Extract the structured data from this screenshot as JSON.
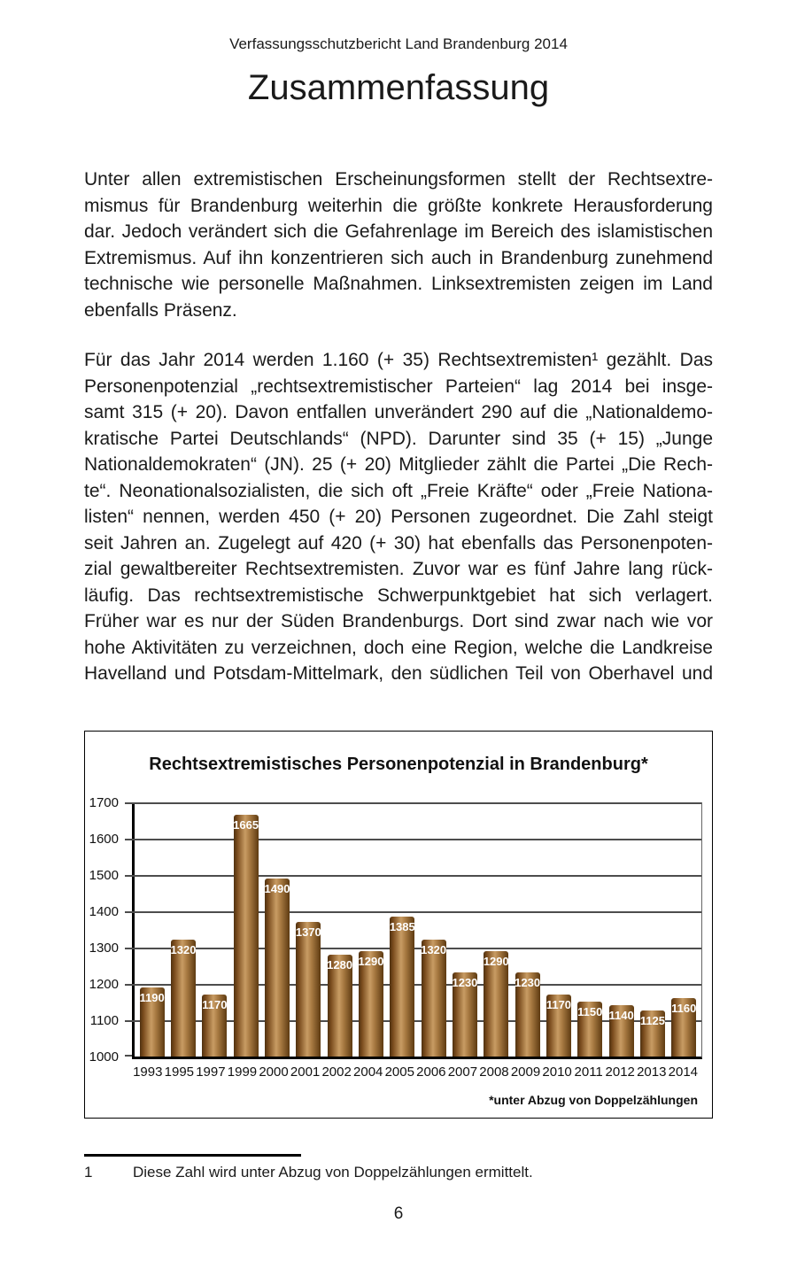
{
  "page": {
    "header": "Verfassungsschutzbericht Land Brandenburg 2014",
    "title": "Zusammenfassung",
    "page_number": "6",
    "footnote_marker": "1",
    "footnote_text": "Diese Zahl wird unter Abzug von Doppelzählungen ermittelt."
  },
  "body": {
    "paragraph1_lines": [
      "Unter allen extremistischen Erscheinungsformen stellt der Rechtsextre-",
      "mismus für Brandenburg weiterhin die größte konkrete Herausforderung",
      "dar. Jedoch verändert sich die Gefahrenlage im Bereich des islamistischen",
      "Extremismus. Auf ihn konzentrieren sich auch in Brandenburg zunehmend",
      "technische wie personelle Maßnahmen. Linksextremisten zeigen im Land",
      "ebenfalls Präsenz."
    ],
    "paragraph2_lines": [
      "Für das Jahr 2014 werden 1.160 (+ 35) Rechtsextremisten¹ gezählt. Das",
      "Personenpotenzial „rechtsextremistischer Parteien“ lag 2014 bei insge-",
      "samt 315 (+ 20). Davon entfallen unverändert 290 auf die „Nationaldemo-",
      "kratische Partei Deutschlands“ (NPD). Darunter sind 35 (+ 15) „Junge",
      "Nationaldemokraten“ (JN). 25 (+ 20) Mitglieder zählt die Partei „Die Rech-",
      "te“. Neonationalsozialisten, die sich oft „Freie Kräfte“ oder „Freie Nationa-",
      "listen“ nennen, werden 450 (+ 20) Personen zugeordnet. Die Zahl steigt",
      "seit Jahren an. Zugelegt auf 420 (+ 30) hat ebenfalls das Personenpoten-",
      "zial gewaltbereiter Rechtsextremisten. Zuvor war es fünf Jahre lang rück-",
      "läufig. Das rechtsextremistische Schwerpunktgebiet hat sich verlagert.",
      "Früher war es nur der Süden Brandenburgs. Dort sind zwar nach wie vor",
      "hohe Aktivitäten zu verzeichnen, doch eine Region, welche die Landkreise",
      "Havelland und Potsdam-Mittelmark, den südlichen Teil von Oberhavel und"
    ]
  },
  "chart_data": {
    "type": "bar",
    "title": "Rechtsextremistisches Personenpotenzial in Brandenburg*",
    "footnote": "*unter Abzug von Doppelzählungen",
    "categories": [
      "1993",
      "1995",
      "1997",
      "1999",
      "2000",
      "2001",
      "2002",
      "2004",
      "2005",
      "2006",
      "2007",
      "2008",
      "2009",
      "2010",
      "2011",
      "2012",
      "2013",
      "2014"
    ],
    "values": [
      1190,
      1320,
      1170,
      1665,
      1490,
      1370,
      1280,
      1290,
      1385,
      1320,
      1230,
      1290,
      1230,
      1170,
      1150,
      1140,
      1125,
      1160
    ],
    "xlabel": "",
    "ylabel": "",
    "ylim": [
      1000,
      1700
    ],
    "ytick_step": 100,
    "grid": true,
    "legend": "none",
    "bar_label_color": "#ffffff",
    "bar_gradient": [
      "#4f3110",
      "#7a4c1d",
      "#c89c64",
      "#a87a42",
      "#5d3a11"
    ],
    "gridline_color": "#4d4d4d",
    "axis_color": "#000000"
  }
}
